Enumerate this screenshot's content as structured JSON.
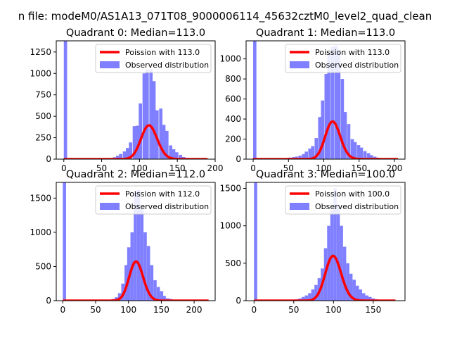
{
  "suptitle": "n file: modeM0/AS1A13_071T08_9000006114_45632cztM0_level2_quad_clean",
  "colors": {
    "bar": "#7f7fff",
    "fit": "#ff0000",
    "axis": "#000000"
  },
  "chart_data": [
    {
      "type": "bar",
      "title": "Quadrant 0: Median=113.0",
      "xlim": [
        -10,
        200
      ],
      "ylim": [
        0,
        1380
      ],
      "xticks": [
        0,
        50,
        100,
        150,
        200
      ],
      "yticks": [
        0,
        250,
        500,
        750,
        1000,
        1250
      ],
      "series": [
        {
          "name": "Observed distribution",
          "kind": "histogram",
          "bin_width": 4.35,
          "bins": [
            [
              0,
              1380
            ],
            [
              56,
              5
            ],
            [
              60,
              10
            ],
            [
              65,
              22
            ],
            [
              69,
              40
            ],
            [
              73,
              60
            ],
            [
              78,
              90
            ],
            [
              82,
              130
            ],
            [
              86,
              195
            ],
            [
              91,
              385
            ],
            [
              95,
              390
            ],
            [
              99,
              650
            ],
            [
              104,
              1000
            ],
            [
              108,
              1045
            ],
            [
              113,
              1050
            ],
            [
              117,
              910
            ],
            [
              121,
              570
            ],
            [
              126,
              590
            ],
            [
              130,
              400
            ],
            [
              134,
              330
            ],
            [
              139,
              160
            ],
            [
              143,
              115
            ],
            [
              147,
              80
            ],
            [
              152,
              50
            ],
            [
              156,
              25
            ],
            [
              160,
              15
            ],
            [
              165,
              10
            ],
            [
              169,
              5
            ]
          ]
        },
        {
          "name": "Poission with 113.0",
          "kind": "poisson",
          "mean": 113.0,
          "total": 10500,
          "x_range": [
            0,
            190
          ]
        }
      ],
      "legend": [
        "Poission with 113.0",
        "Observed distribution"
      ],
      "legend_position": "upper right"
    },
    {
      "type": "bar",
      "title": "Quadrant 1: Median=113.0",
      "xlim": [
        -10,
        215
      ],
      "ylim": [
        0,
        1180
      ],
      "xticks": [
        0,
        50,
        100,
        150,
        200
      ],
      "yticks": [
        0,
        200,
        400,
        600,
        800,
        1000
      ],
      "series": [
        {
          "name": "Observed distribution",
          "kind": "histogram",
          "bin_width": 4.6,
          "bins": [
            [
              0,
              1180
            ],
            [
              41,
              5
            ],
            [
              46,
              10
            ],
            [
              50,
              15
            ],
            [
              55,
              20
            ],
            [
              59,
              25
            ],
            [
              64,
              35
            ],
            [
              69,
              50
            ],
            [
              73,
              75
            ],
            [
              78,
              105
            ],
            [
              82,
              130
            ],
            [
              87,
              210
            ],
            [
              92,
              420
            ],
            [
              96,
              585
            ],
            [
              101,
              850
            ],
            [
              105,
              1065
            ],
            [
              110,
              1120
            ],
            [
              115,
              1130
            ],
            [
              119,
              1090
            ],
            [
              124,
              800
            ],
            [
              128,
              470
            ],
            [
              133,
              350
            ],
            [
              138,
              200
            ],
            [
              142,
              170
            ],
            [
              147,
              140
            ],
            [
              151,
              115
            ],
            [
              156,
              80
            ],
            [
              161,
              60
            ],
            [
              165,
              40
            ],
            [
              170,
              25
            ],
            [
              174,
              15
            ],
            [
              179,
              10
            ],
            [
              184,
              5
            ],
            [
              188,
              5
            ],
            [
              193,
              5
            ],
            [
              197,
              5
            ]
          ]
        },
        {
          "name": "Poission with 113.0",
          "kind": "poisson",
          "mean": 113.0,
          "total": 10000,
          "x_range": [
            0,
            205
          ]
        }
      ],
      "legend": [
        "Poission with 113.0",
        "Observed distribution"
      ],
      "legend_position": "upper right"
    },
    {
      "type": "bar",
      "title": "Quadrant 2: Median=112.0",
      "xlim": [
        -10,
        232
      ],
      "ylim": [
        0,
        1730
      ],
      "xticks": [
        0,
        50,
        100,
        150,
        200
      ],
      "yticks": [
        0,
        500,
        1000,
        1500
      ],
      "series": [
        {
          "name": "Observed distribution",
          "kind": "histogram",
          "bin_width": 4.9,
          "bins": [
            [
              0,
              1730
            ],
            [
              69,
              10
            ],
            [
              74,
              25
            ],
            [
              79,
              50
            ],
            [
              84,
              110
            ],
            [
              89,
              250
            ],
            [
              94,
              520
            ],
            [
              98,
              780
            ],
            [
              103,
              1000
            ],
            [
              108,
              1600
            ],
            [
              113,
              1620
            ],
            [
              118,
              1350
            ],
            [
              123,
              1000
            ],
            [
              128,
              800
            ],
            [
              133,
              520
            ],
            [
              138,
              300
            ],
            [
              143,
              200
            ],
            [
              148,
              140
            ],
            [
              152,
              70
            ],
            [
              157,
              35
            ],
            [
              162,
              25
            ],
            [
              167,
              15
            ],
            [
              172,
              10
            ],
            [
              177,
              5
            ],
            [
              182,
              5
            ]
          ]
        },
        {
          "name": "Poission with 112.0",
          "kind": "poisson",
          "mean": 112.0,
          "total": 15200,
          "x_range": [
            0,
            222
          ]
        }
      ],
      "legend": [
        "Poission with 112.0",
        "Observed distribution"
      ],
      "legend_position": "upper right"
    },
    {
      "type": "bar",
      "title": "Quadrant 3: Median=100.0",
      "xlim": [
        -10,
        190
      ],
      "ylim": [
        0,
        1580
      ],
      "xticks": [
        0,
        50,
        100,
        150
      ],
      "yticks": [
        0,
        500,
        1000,
        1500
      ],
      "series": [
        {
          "name": "Observed distribution",
          "kind": "histogram",
          "bin_width": 4.0,
          "bins": [
            [
              0,
              1580
            ],
            [
              44,
              10
            ],
            [
              48,
              15
            ],
            [
              52,
              20
            ],
            [
              56,
              30
            ],
            [
              60,
              50
            ],
            [
              64,
              70
            ],
            [
              68,
              100
            ],
            [
              72,
              150
            ],
            [
              76,
              210
            ],
            [
              80,
              300
            ],
            [
              84,
              430
            ],
            [
              88,
              700
            ],
            [
              92,
              1000
            ],
            [
              96,
              1210
            ],
            [
              100,
              1500
            ],
            [
              104,
              1260
            ],
            [
              108,
              1000
            ],
            [
              112,
              720
            ],
            [
              116,
              500
            ],
            [
              120,
              360
            ],
            [
              124,
              280
            ],
            [
              128,
              200
            ],
            [
              132,
              150
            ],
            [
              136,
              100
            ],
            [
              140,
              70
            ],
            [
              144,
              50
            ],
            [
              148,
              30
            ],
            [
              152,
              20
            ],
            [
              156,
              10
            ],
            [
              160,
              5
            ],
            [
              164,
              5
            ]
          ]
        },
        {
          "name": "Poission with 100.0",
          "kind": "poisson",
          "mean": 100.0,
          "total": 15000,
          "x_range": [
            0,
            178
          ]
        }
      ],
      "legend": [
        "Poission with 100.0",
        "Observed distribution"
      ],
      "legend_position": "upper right"
    }
  ]
}
